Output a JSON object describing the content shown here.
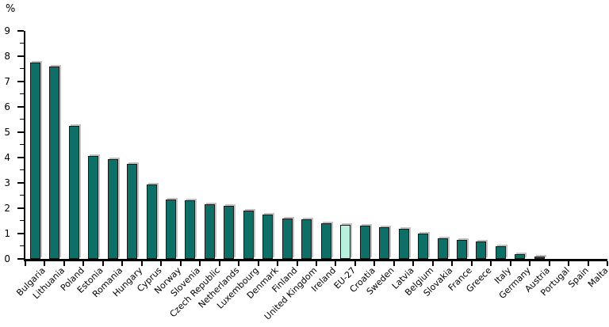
{
  "chart_data": {
    "type": "bar",
    "title": "",
    "xlabel": "",
    "ylabel": "%",
    "ylim": [
      0,
      9
    ],
    "y_ticks": [
      0,
      1,
      2,
      3,
      4,
      5,
      6,
      7,
      8,
      9
    ],
    "y_minor_step": 0.5,
    "grid": false,
    "legend": "none",
    "categories": [
      "Bulgaria",
      "Lithuania",
      "Poland",
      "Estonia",
      "Romania",
      "Hungary",
      "Cyprus",
      "Norway",
      "Slovenia",
      "Czech Republic",
      "Netherlands",
      "Luxembourg",
      "Denmark",
      "Finland",
      "United Kingdom",
      "Ireland",
      "EU-27",
      "Croatia",
      "Sweden",
      "Latvia",
      "Belgium",
      "Slovakia",
      "France",
      "Greece",
      "Italy",
      "Germany",
      "Austria",
      "Portugal",
      "Spain",
      "Malta"
    ],
    "values": [
      7.75,
      7.6,
      5.25,
      4.05,
      3.95,
      3.75,
      2.95,
      2.35,
      2.3,
      2.15,
      2.1,
      1.9,
      1.75,
      1.6,
      1.55,
      1.4,
      1.35,
      1.3,
      1.25,
      1.2,
      1.0,
      0.8,
      0.75,
      0.7,
      0.5,
      0.2,
      0.1,
      0.0,
      0.0,
      0.0
    ],
    "highlight_category": "EU-27",
    "bar_color": "#0e6f67",
    "highlight_color": "#b9f0dd",
    "bar_border_color": "#1a1a1a",
    "axis_color": "#000000",
    "label_color": "#000000"
  }
}
